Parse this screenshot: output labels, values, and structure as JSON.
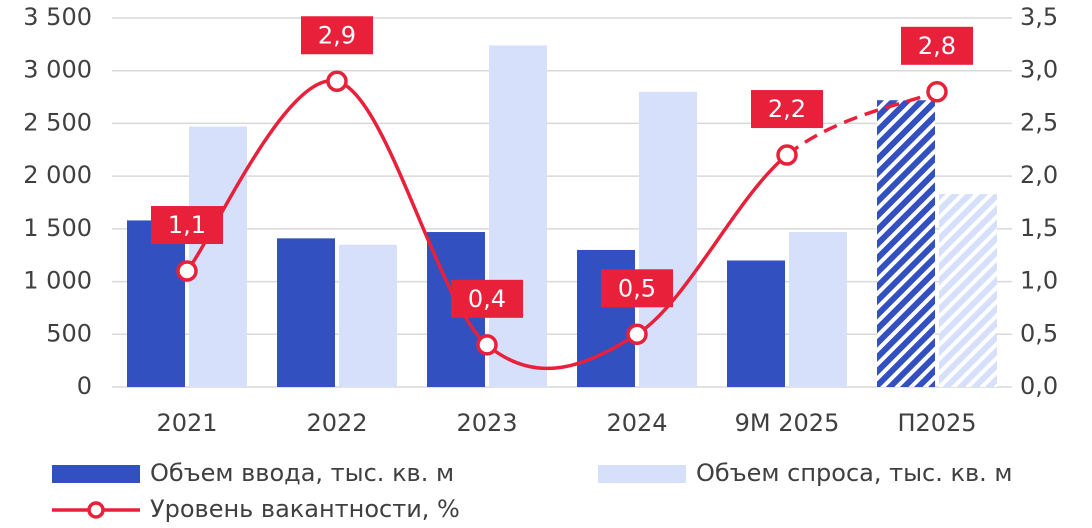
{
  "chart_data": {
    "type": "bar_line",
    "categories": [
      "2021",
      "2022",
      "2023",
      "2024",
      "9М 2025",
      "П2025"
    ],
    "forecast_from": 5,
    "series": [
      {
        "name": "Объем ввода, тыс. кв. м",
        "color": "#3350c0",
        "type": "bar",
        "values": [
          1580,
          1410,
          1470,
          1300,
          1200,
          2720
        ]
      },
      {
        "name": "Объем спроса, тыс. кв. м",
        "color": "#d6e0fa",
        "type": "bar",
        "values": [
          2470,
          1350,
          3240,
          2800,
          1470,
          1830
        ]
      },
      {
        "name": "Уровень вакантности, %",
        "color": "#e8203a",
        "type": "line",
        "axis": "y2",
        "values": [
          1.1,
          2.9,
          0.4,
          0.5,
          2.2,
          2.8
        ],
        "value_labels": [
          "1,1",
          "2,9",
          "0,4",
          "0,5",
          "2,2",
          "2,8"
        ]
      }
    ],
    "ylim": [
      0,
      3500
    ],
    "yticks": [
      0,
      500,
      {
        "value": 1000,
        "label": "1 000"
      },
      {
        "value": 1500,
        "label": "1 500"
      },
      {
        "value": 2000,
        "label": "2 000"
      },
      {
        "value": 2500,
        "label": "2 500"
      },
      {
        "value": 3000,
        "label": "3 000"
      },
      {
        "value": 3500,
        "label": "3 500"
      }
    ],
    "y2lim": [
      0,
      3.5
    ],
    "y2ticks": [
      {
        "value": 0,
        "label": "0,0"
      },
      {
        "value": 0.5,
        "label": "0,5"
      },
      {
        "value": 1,
        "label": "1,0"
      },
      {
        "value": 1.5,
        "label": "1,5"
      },
      {
        "value": 2,
        "label": "2,0"
      },
      {
        "value": 2.5,
        "label": "2,5"
      },
      {
        "value": 3,
        "label": "3,0"
      },
      {
        "value": 3.5,
        "label": "3,5"
      }
    ],
    "grid": true
  }
}
